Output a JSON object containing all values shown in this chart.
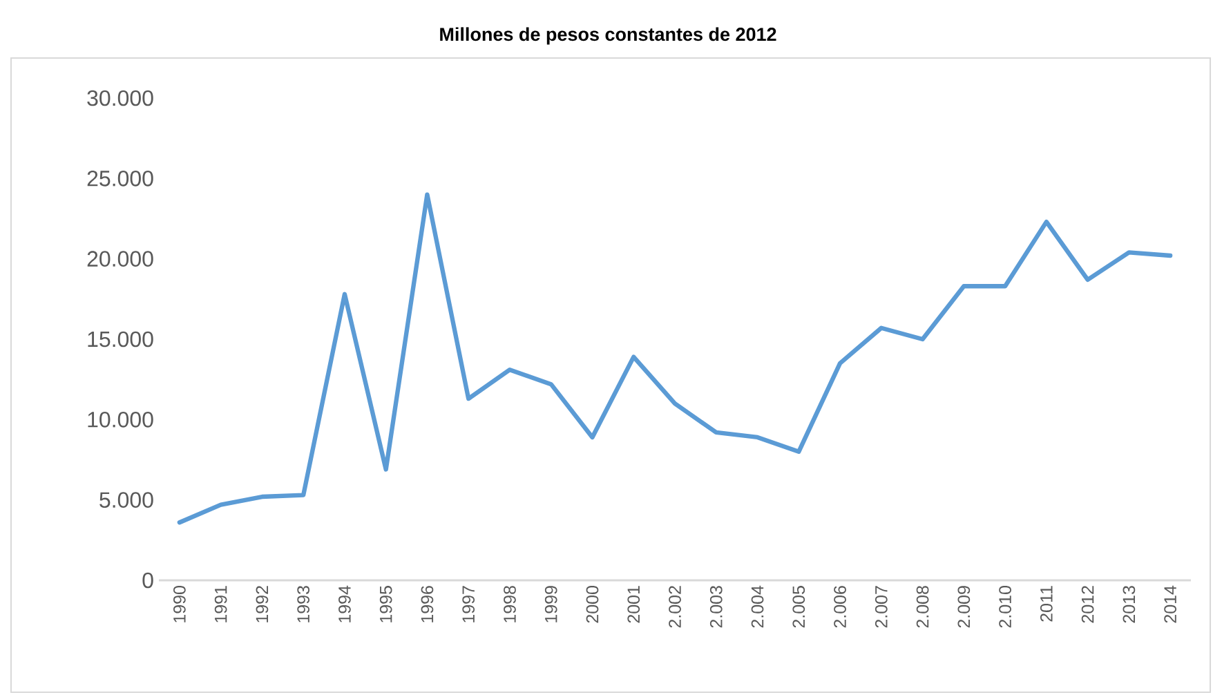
{
  "chart_data": {
    "type": "line",
    "title": "Millones de pesos constantes de 2012",
    "categories": [
      "1990",
      "1991",
      "1992",
      "1993",
      "1994",
      "1995",
      "1996",
      "1997",
      "1998",
      "1999",
      "2000",
      "2001",
      "2.002",
      "2.003",
      "2.004",
      "2.005",
      "2.006",
      "2.007",
      "2.008",
      "2.009",
      "2.010",
      "2011",
      "2012",
      "2013",
      "2014"
    ],
    "series": [
      {
        "color": "#5b9bd5",
        "values": [
          3600,
          4700,
          5200,
          5300,
          17800,
          6900,
          24000,
          11300,
          13100,
          12200,
          8900,
          13900,
          11000,
          9200,
          8900,
          8000,
          13500,
          15700,
          15000,
          18300,
          18300,
          22300,
          18700,
          20400,
          20200
        ]
      }
    ],
    "ylim": [
      0,
      30000
    ],
    "yticks": [
      {
        "value": 0,
        "label": "0"
      },
      {
        "value": 5000,
        "label": "5.000"
      },
      {
        "value": 10000,
        "label": "10.000"
      },
      {
        "value": 15000,
        "label": "15.000"
      },
      {
        "value": 20000,
        "label": "20.000"
      },
      {
        "value": 25000,
        "label": "25.000"
      },
      {
        "value": 30000,
        "label": "30.000"
      }
    ]
  }
}
